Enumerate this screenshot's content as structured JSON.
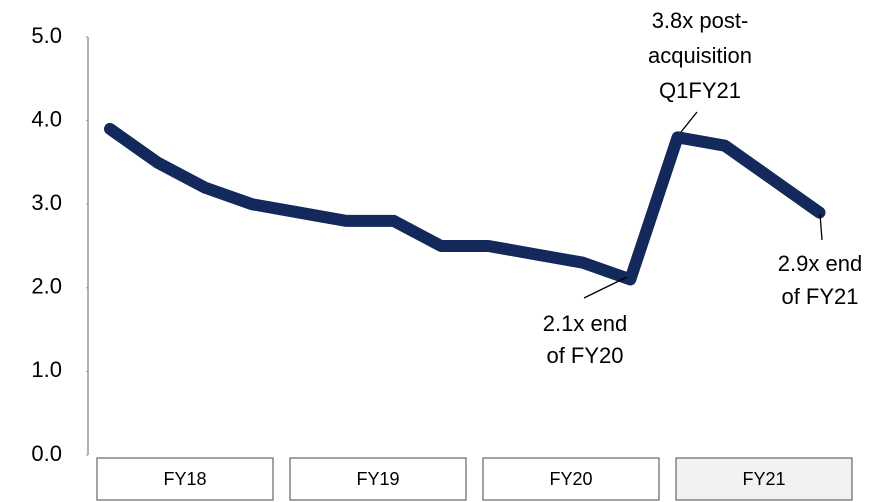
{
  "chart_data": {
    "type": "line",
    "categories": [
      null,
      null,
      null,
      null,
      null,
      null,
      null,
      null,
      null,
      null,
      null,
      null,
      null,
      null,
      null,
      null
    ],
    "groups": [
      "FY18",
      "FY19",
      "FY20",
      "FY21"
    ],
    "series": [
      {
        "name": null,
        "color": "#13285b",
        "values": [
          3.9,
          3.5,
          3.2,
          3.0,
          2.9,
          2.8,
          2.8,
          2.5,
          2.5,
          2.4,
          2.3,
          2.1,
          3.8,
          3.7,
          3.3,
          2.9
        ]
      }
    ],
    "ylim": [
      0,
      5
    ],
    "yticks": [
      {
        "value": 0,
        "label": "0.0"
      },
      {
        "value": 1,
        "label": "1.0"
      },
      {
        "value": 2,
        "label": "2.0"
      },
      {
        "value": 3,
        "label": "3.0"
      },
      {
        "value": 4,
        "label": "4.0"
      },
      {
        "value": 5,
        "label": "5.0"
      }
    ],
    "annotations": [
      {
        "text": [
          "3.8x post-",
          "acquisition",
          "Q1FY21"
        ]
      },
      {
        "text": [
          "2.1x end",
          "of FY20"
        ]
      },
      {
        "text": [
          "2.9x end",
          "of FY21"
        ]
      }
    ]
  }
}
